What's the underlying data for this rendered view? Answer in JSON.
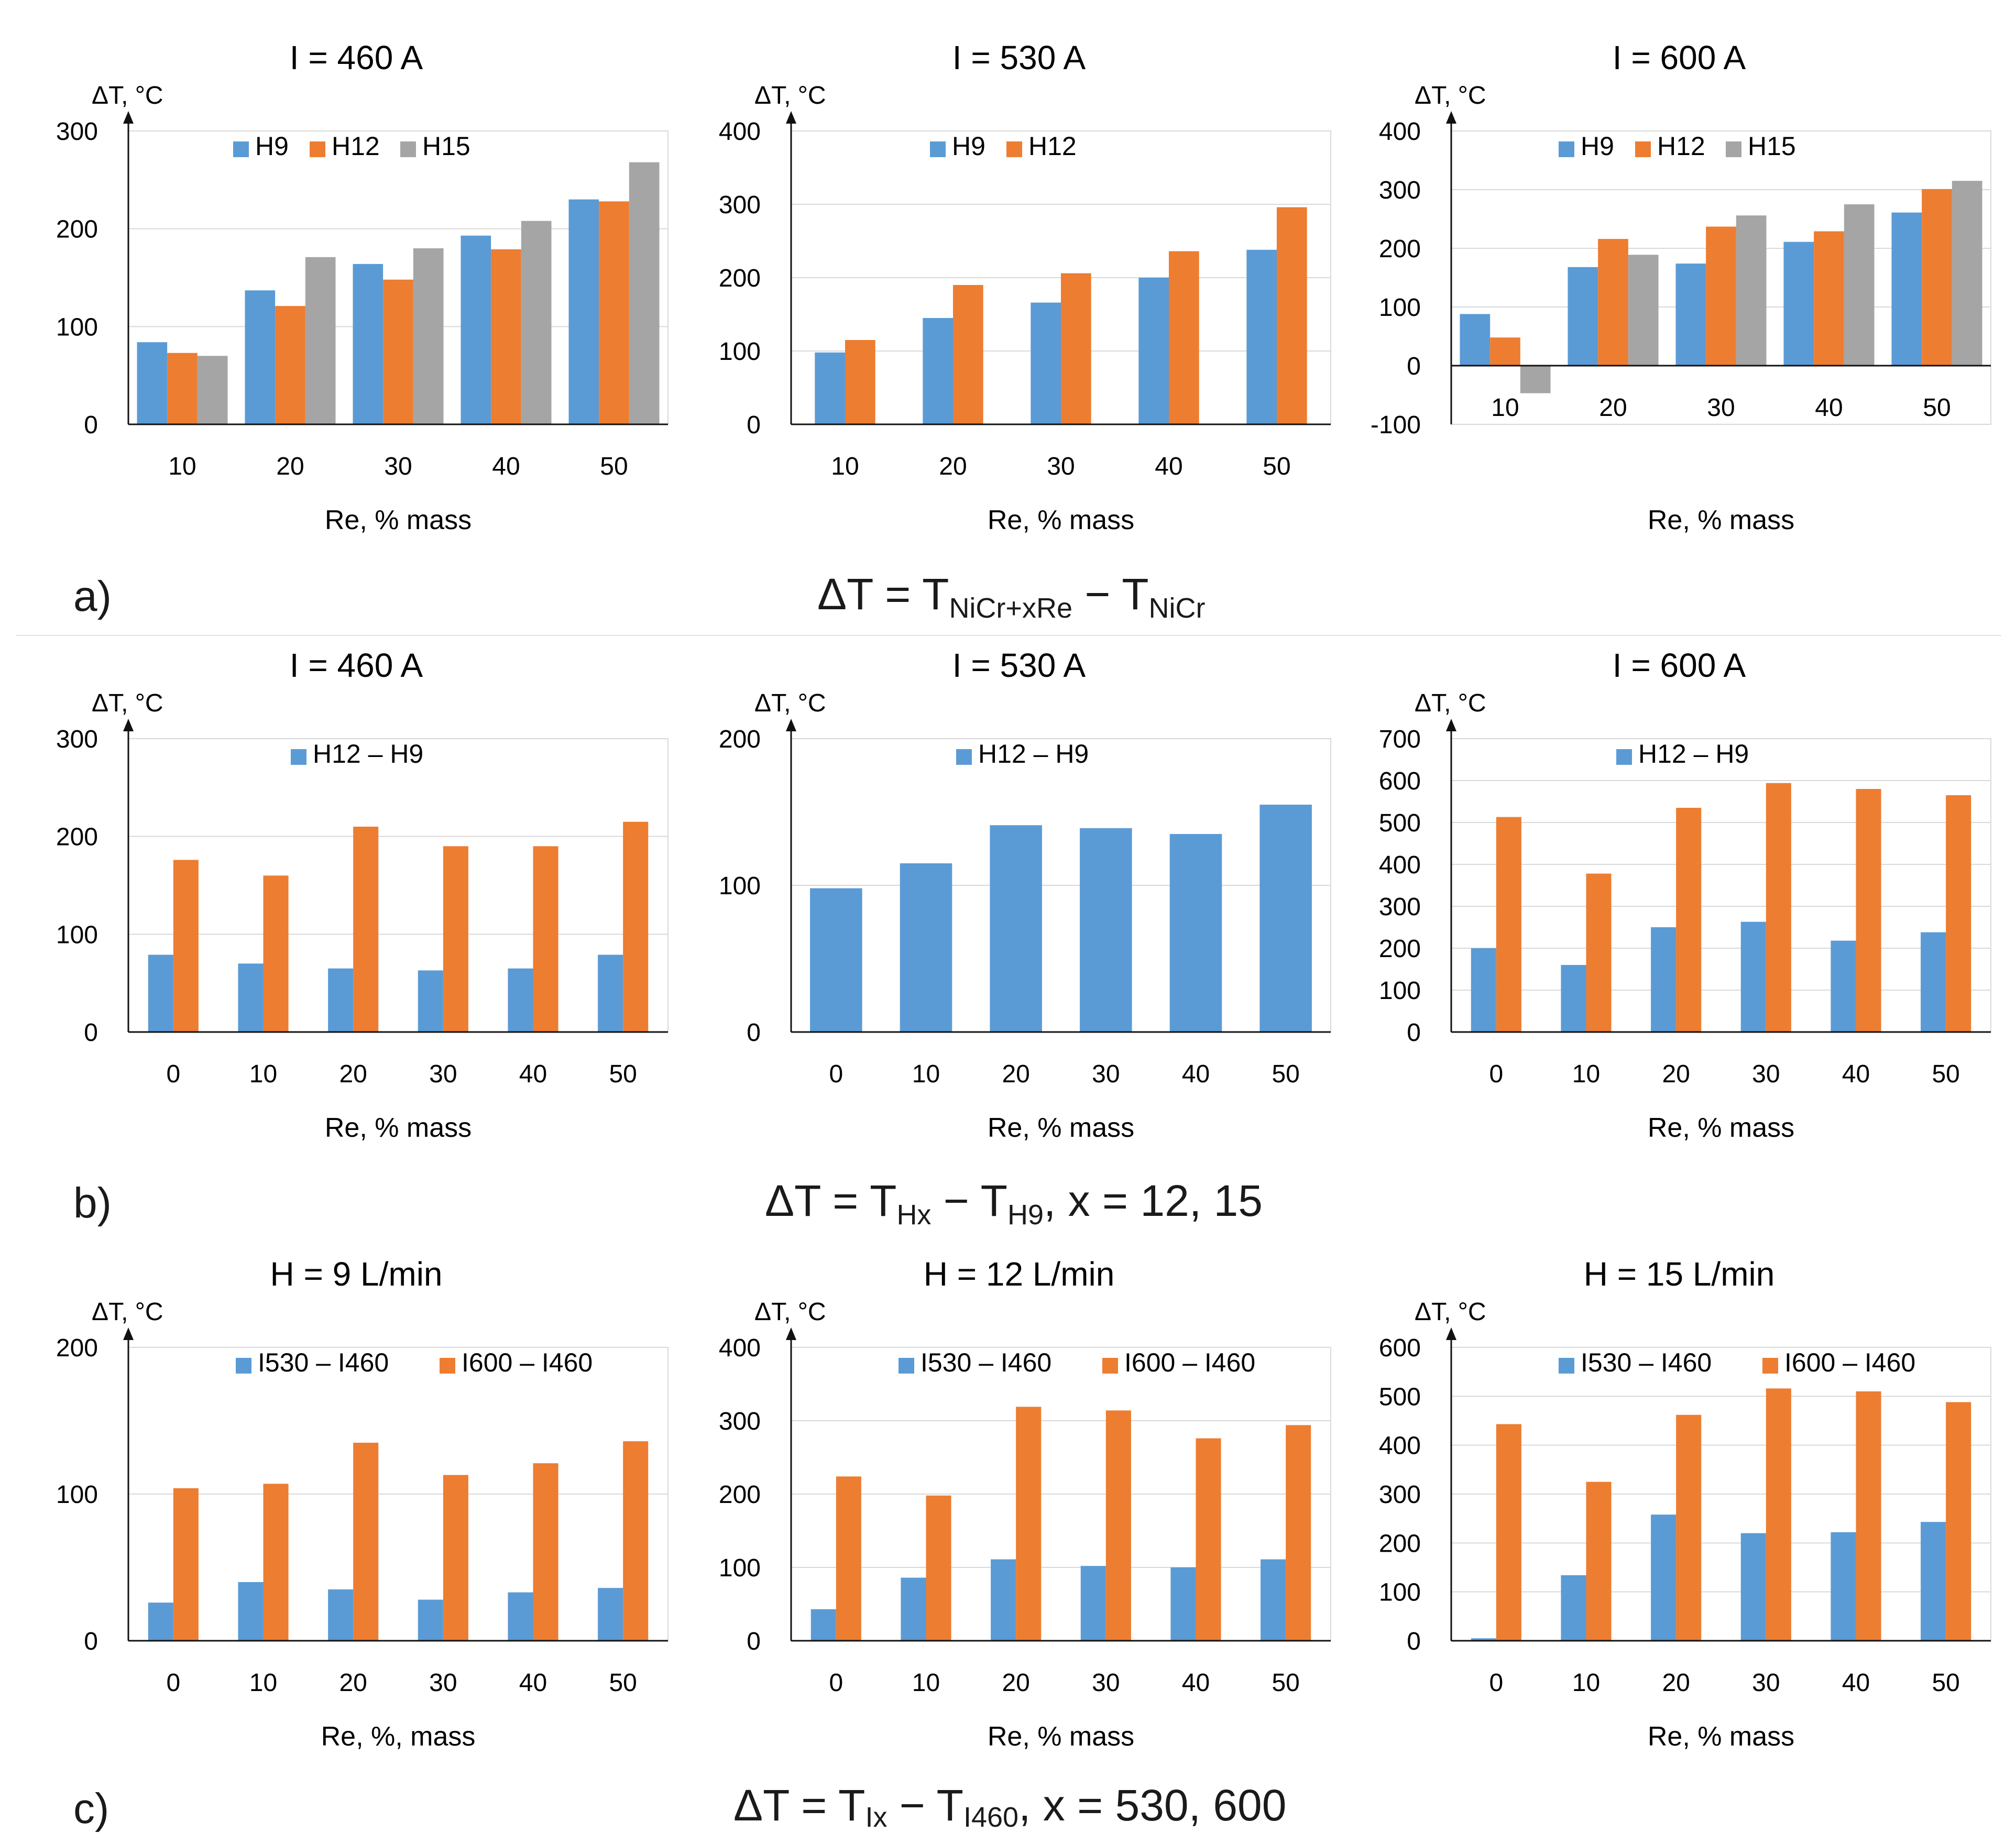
{
  "sections": [
    {
      "label": "a)",
      "formula": {
        "main": "ΔT = T",
        "sub1": "NiCr+xRe",
        "mid": " − T",
        "sub2": "NiCr",
        "tail": ""
      }
    },
    {
      "label": "b)",
      "formula": {
        "main": "ΔT = T",
        "sub1": "Hx",
        "mid": " − T",
        "sub2": "H9",
        "tail": ", x = 12, 15"
      }
    },
    {
      "label": "c)",
      "formula": {
        "main": "ΔT = T",
        "sub1": "Ix",
        "mid": " − T",
        "sub2": "I460",
        "tail": ", x = 530, 600"
      }
    }
  ],
  "colors": {
    "blue": "#5B9BD5",
    "orange": "#ED7D31",
    "gray": "#A5A5A5"
  },
  "chart_data": [
    {
      "type": "bar",
      "title": "I = 460 A",
      "ylabel": "ΔT, °C",
      "xlabel": "Re, % mass",
      "categories": [
        "10",
        "20",
        "30",
        "40",
        "50"
      ],
      "ylim": [
        0,
        300
      ],
      "yticks": [
        0,
        100,
        200,
        300
      ],
      "series": [
        {
          "name": "H9",
          "color": "blue",
          "values": [
            84,
            137,
            164,
            193,
            230
          ]
        },
        {
          "name": "H12",
          "color": "orange",
          "values": [
            73,
            121,
            148,
            179,
            228
          ]
        },
        {
          "name": "H15",
          "color": "gray",
          "values": [
            70,
            171,
            180,
            208,
            268
          ]
        }
      ]
    },
    {
      "type": "bar",
      "title": "I = 530 A",
      "ylabel": "ΔT, °C",
      "xlabel": "Re, % mass",
      "categories": [
        "10",
        "20",
        "30",
        "40",
        "50"
      ],
      "ylim": [
        0,
        400
      ],
      "yticks": [
        0,
        100,
        200,
        300,
        400
      ],
      "series": [
        {
          "name": "H9",
          "color": "blue",
          "values": [
            98,
            145,
            166,
            200,
            238
          ]
        },
        {
          "name": "H12",
          "color": "orange",
          "values": [
            115,
            190,
            206,
            236,
            296
          ]
        }
      ]
    },
    {
      "type": "bar",
      "title": "I = 600 A",
      "ylabel": "ΔT, °C",
      "xlabel": "Re, % mass",
      "categories": [
        "10",
        "20",
        "30",
        "40",
        "50"
      ],
      "ylim": [
        -100,
        400
      ],
      "yticks": [
        -100,
        0,
        100,
        200,
        300,
        400
      ],
      "series": [
        {
          "name": "H9",
          "color": "blue",
          "values": [
            88,
            168,
            174,
            211,
            261
          ]
        },
        {
          "name": "H12",
          "color": "orange",
          "values": [
            48,
            216,
            237,
            229,
            301
          ]
        },
        {
          "name": "H15",
          "color": "gray",
          "values": [
            -47,
            189,
            256,
            275,
            315
          ]
        }
      ]
    },
    {
      "type": "bar",
      "title": "I = 460 A",
      "ylabel": "ΔT, °C",
      "xlabel": "Re, % mass",
      "categories": [
        "0",
        "10",
        "20",
        "30",
        "40",
        "50"
      ],
      "ylim": [
        0,
        300
      ],
      "yticks": [
        0,
        100,
        200,
        300
      ],
      "series": [
        {
          "name": "H12 – H9",
          "color": "blue",
          "values": [
            79,
            70,
            65,
            63,
            65,
            79
          ]
        },
        {
          "name": "",
          "color": "orange",
          "values": [
            176,
            160,
            210,
            190,
            190,
            215
          ]
        }
      ]
    },
    {
      "type": "bar",
      "title": "I = 530 A",
      "ylabel": "ΔT, °C",
      "xlabel": "Re, % mass",
      "categories": [
        "0",
        "10",
        "20",
        "30",
        "40",
        "50"
      ],
      "ylim": [
        0,
        200
      ],
      "yticks": [
        0,
        100,
        200
      ],
      "series": [
        {
          "name": "H12 – H9",
          "color": "blue",
          "values": [
            98,
            115,
            141,
            139,
            135,
            155
          ]
        }
      ]
    },
    {
      "type": "bar",
      "title": "I = 600 A",
      "ylabel": "ΔT, °C",
      "xlabel": "Re, % mass",
      "categories": [
        "0",
        "10",
        "20",
        "30",
        "40",
        "50"
      ],
      "ylim": [
        0,
        700
      ],
      "yticks": [
        0,
        100,
        200,
        300,
        400,
        500,
        600,
        700
      ],
      "series": [
        {
          "name": "H12 – H9",
          "color": "blue",
          "values": [
            200,
            160,
            250,
            263,
            218,
            238
          ]
        },
        {
          "name": "",
          "color": "orange",
          "values": [
            513,
            378,
            535,
            594,
            580,
            565
          ]
        }
      ]
    },
    {
      "type": "bar",
      "title": "H = 9 L/min",
      "ylabel": "ΔT, °C",
      "xlabel": "Re, %, mass",
      "categories": [
        "0",
        "10",
        "20",
        "30",
        "40",
        "50"
      ],
      "ylim": [
        0,
        200
      ],
      "yticks": [
        0,
        100,
        200
      ],
      "series": [
        {
          "name": "I530 – I460",
          "color": "blue",
          "values": [
            26,
            40,
            35,
            28,
            33,
            36
          ]
        },
        {
          "name": "I600 – I460",
          "color": "orange",
          "values": [
            104,
            107,
            135,
            113,
            121,
            136
          ]
        }
      ]
    },
    {
      "type": "bar",
      "title": "H = 12 L/min",
      "ylabel": "ΔT, °C",
      "xlabel": "Re, % mass",
      "categories": [
        "0",
        "10",
        "20",
        "30",
        "40",
        "50"
      ],
      "ylim": [
        0,
        400
      ],
      "yticks": [
        0,
        100,
        200,
        300,
        400
      ],
      "series": [
        {
          "name": "I530 – I460",
          "color": "blue",
          "values": [
            43,
            86,
            111,
            102,
            100,
            111
          ]
        },
        {
          "name": "I600 – I460",
          "color": "orange",
          "values": [
            224,
            198,
            319,
            314,
            276,
            294
          ]
        }
      ]
    },
    {
      "type": "bar",
      "title": "H = 15 L/min",
      "ylabel": "ΔT, °C",
      "xlabel": "Re, % mass",
      "categories": [
        "0",
        "10",
        "20",
        "30",
        "40",
        "50"
      ],
      "ylim": [
        0,
        600
      ],
      "yticks": [
        0,
        100,
        200,
        300,
        400,
        500,
        600
      ],
      "series": [
        {
          "name": "I530 – I460",
          "color": "blue",
          "values": [
            5,
            134,
            258,
            220,
            222,
            243
          ]
        },
        {
          "name": "I600 – I460",
          "color": "orange",
          "values": [
            443,
            325,
            462,
            516,
            510,
            488
          ]
        }
      ]
    }
  ]
}
